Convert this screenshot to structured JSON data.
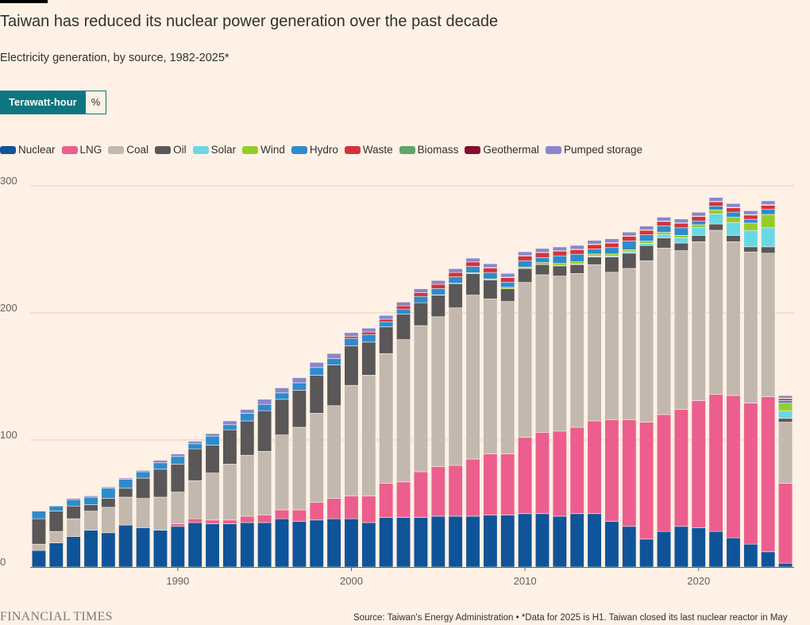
{
  "header": {
    "title": "Taiwan has reduced its nuclear power generation over the past decade",
    "subtitle": "Electricity generation, by source, 1982-2025*"
  },
  "toggle": {
    "active_label": "Terawatt-hour",
    "inactive_label": "%"
  },
  "footer": {
    "brand": "FINANCIAL TIMES",
    "source": "Source: Taiwan's Energy Administration • *Data for 2025 is H1. Taiwan closed its last nuclear reactor in May"
  },
  "chart_data": {
    "type": "bar",
    "stacked": true,
    "unit": "Terawatt-hour",
    "ylim": [
      0,
      300
    ],
    "yticks": [
      0,
      100,
      200,
      300
    ],
    "xticks": [
      1990,
      2000,
      2010,
      2020
    ],
    "grid": true,
    "legend_position": "top-left",
    "x": [
      1982,
      1983,
      1984,
      1985,
      1986,
      1987,
      1988,
      1989,
      1990,
      1991,
      1992,
      1993,
      1994,
      1995,
      1996,
      1997,
      1998,
      1999,
      2000,
      2001,
      2002,
      2003,
      2004,
      2005,
      2006,
      2007,
      2008,
      2009,
      2010,
      2011,
      2012,
      2013,
      2014,
      2015,
      2016,
      2017,
      2018,
      2019,
      2020,
      2021,
      2022,
      2023,
      2024,
      2025
    ],
    "series": [
      {
        "name": "Nuclear",
        "color": "#0f5499",
        "values": [
          13,
          19,
          24,
          29,
          27,
          33,
          31,
          29,
          32,
          35,
          34,
          34,
          35,
          35,
          38,
          36,
          37,
          38,
          38,
          35,
          39,
          39,
          39,
          40,
          40,
          40,
          41,
          41,
          42,
          42,
          40,
          42,
          42,
          36,
          32,
          22,
          28,
          32,
          31,
          28,
          23,
          18,
          12,
          3
        ]
      },
      {
        "name": "LNG",
        "color": "#eb5e8d",
        "values": [
          0,
          0,
          0,
          0,
          0,
          0,
          0,
          0,
          2,
          3,
          3,
          3,
          5,
          6,
          7,
          9,
          14,
          16,
          18,
          21,
          27,
          28,
          36,
          39,
          40,
          45,
          48,
          48,
          60,
          64,
          67,
          68,
          73,
          80,
          84,
          92,
          92,
          92,
          100,
          108,
          112,
          111,
          122,
          63
        ]
      },
      {
        "name": "Coal",
        "color": "#c2b8ae",
        "values": [
          5,
          9,
          14,
          15,
          20,
          22,
          23,
          26,
          25,
          30,
          37,
          44,
          48,
          50,
          59,
          65,
          70,
          73,
          87,
          95,
          102,
          112,
          115,
          118,
          124,
          129,
          122,
          120,
          122,
          124,
          122,
          121,
          123,
          116,
          119,
          127,
          131,
          125,
          125,
          129,
          121,
          119,
          113,
          48
        ]
      },
      {
        "name": "Oil",
        "color": "#5a5758",
        "values": [
          20,
          16,
          10,
          5,
          7,
          7,
          16,
          22,
          22,
          25,
          22,
          27,
          27,
          32,
          28,
          29,
          30,
          32,
          31,
          26,
          21,
          20,
          18,
          17,
          19,
          17,
          15,
          10,
          11,
          8,
          8,
          7,
          6,
          12,
          12,
          12,
          8,
          6,
          5,
          5,
          5,
          4,
          5,
          3
        ]
      },
      {
        "name": "Solar",
        "color": "#69d8e5",
        "values": [
          0,
          0,
          0,
          0,
          0,
          0,
          0,
          0,
          0,
          0,
          0,
          0,
          0,
          0,
          0,
          0,
          0,
          0,
          0,
          0,
          0,
          0,
          0,
          0,
          0,
          0,
          0,
          0,
          0.1,
          0.1,
          0.2,
          0.5,
          0.6,
          0.9,
          1.2,
          1.8,
          2.7,
          4.1,
          6.1,
          7.9,
          10.2,
          12.9,
          15,
          6
        ]
      },
      {
        "name": "Wind",
        "color": "#96cc28",
        "values": [
          0,
          0,
          0,
          0,
          0,
          0,
          0,
          0,
          0,
          0,
          0,
          0,
          0,
          0,
          0,
          0,
          0,
          0,
          0,
          0,
          0,
          0,
          0,
          0.2,
          0.4,
          0.6,
          0.8,
          1.2,
          1.0,
          1.5,
          1.7,
          1.7,
          1.7,
          1.5,
          1.5,
          1.7,
          1.7,
          1.9,
          2.3,
          3.1,
          4.1,
          5.8,
          10.5,
          6
        ]
      },
      {
        "name": "Hydro",
        "color": "#2e8bcd",
        "values": [
          6,
          4,
          5,
          6,
          8,
          7,
          5,
          5,
          6,
          4,
          7,
          4,
          6,
          5,
          5,
          6,
          6,
          5,
          6,
          6,
          4,
          4,
          5,
          5,
          5,
          5,
          5,
          4,
          5,
          4,
          6,
          6,
          4,
          5,
          7,
          5,
          5,
          6,
          3,
          3,
          4,
          3,
          4,
          2
        ]
      },
      {
        "name": "Waste",
        "color": "#d4323c",
        "values": [
          0,
          0,
          0,
          0,
          0,
          0,
          0,
          0,
          0,
          0,
          0,
          0,
          0,
          0,
          0,
          0,
          0,
          0,
          1.5,
          2,
          2,
          2.5,
          3,
          3.3,
          3.4,
          3.5,
          3.6,
          3.6,
          3.7,
          3.8,
          3.7,
          3.6,
          3.5,
          3.6,
          3.6,
          3.5,
          3.6,
          3.6,
          3.5,
          3.5,
          3.4,
          3.3,
          3.2,
          1.6
        ]
      },
      {
        "name": "Biomass",
        "color": "#5fa56e",
        "values": [
          0,
          0,
          0,
          0,
          0,
          0,
          0,
          0,
          0,
          0,
          0,
          0,
          0,
          0,
          0,
          0,
          0,
          0,
          0,
          0,
          0,
          0,
          0,
          0,
          0,
          0,
          0.3,
          0.3,
          0.3,
          0.3,
          0.3,
          0.3,
          0.3,
          0.3,
          0.3,
          0.3,
          0.3,
          0.3,
          0.3,
          0.3,
          0.3,
          0.3,
          0.3,
          0.2
        ]
      },
      {
        "name": "Geothermal",
        "color": "#870c2f",
        "values": [
          0,
          0,
          0,
          0,
          0,
          0,
          0,
          0,
          0,
          0,
          0,
          0,
          0,
          0,
          0,
          0,
          0,
          0,
          0,
          0,
          0,
          0,
          0,
          0,
          0,
          0,
          0,
          0,
          0,
          0,
          0,
          0,
          0,
          0,
          0,
          0,
          0,
          0,
          0,
          0,
          0.1,
          0.1,
          0.2,
          0.1
        ]
      },
      {
        "name": "Pumped storage",
        "color": "#8787cc",
        "values": [
          0,
          0,
          1,
          1,
          1,
          1,
          1,
          2,
          2,
          2,
          2,
          3,
          3,
          4,
          4,
          4,
          4,
          4,
          3,
          3,
          3,
          3,
          3,
          3,
          3,
          3,
          3,
          3,
          3,
          3,
          3,
          3,
          3,
          3,
          3,
          3,
          3,
          3,
          3,
          3,
          3,
          3,
          3,
          2
        ]
      }
    ]
  }
}
